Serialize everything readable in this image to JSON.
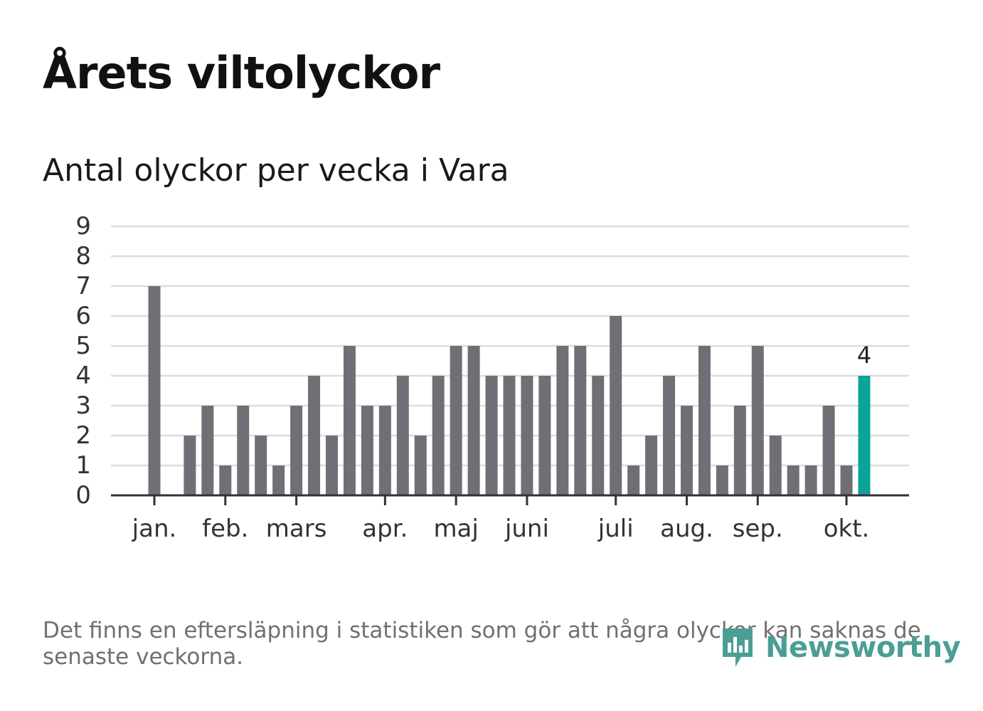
{
  "header": {
    "title": "Årets viltolyckor",
    "subtitle": "Antal olyckor per vecka i Vara"
  },
  "footer": {
    "note": "Det finns en eftersläpning i statistiken som gör att några olyckor kan saknas de senaste veckorna.",
    "brand": "Newsworthy"
  },
  "colors": {
    "bar": "#6f6f75",
    "highlight": "#0aa39a",
    "grid": "#dddddd",
    "axis": "#333333",
    "brand": "#4c9e95"
  },
  "chart_data": {
    "type": "bar",
    "title": "Antal olyckor per vecka i Vara",
    "xlabel": "",
    "ylabel": "",
    "ylim": [
      0,
      9
    ],
    "yticks": [
      0,
      1,
      2,
      3,
      4,
      5,
      6,
      7,
      8,
      9
    ],
    "grid": true,
    "weeks": [
      1,
      2,
      3,
      4,
      5,
      6,
      7,
      8,
      9,
      10,
      11,
      12,
      13,
      14,
      15,
      16,
      17,
      18,
      19,
      20,
      21,
      22,
      23,
      24,
      25,
      26,
      27,
      28,
      29,
      30,
      31,
      32,
      33,
      34,
      35,
      36,
      37,
      38,
      39,
      40,
      41
    ],
    "values": [
      7,
      0,
      2,
      3,
      1,
      3,
      2,
      1,
      3,
      4,
      2,
      5,
      3,
      3,
      4,
      2,
      4,
      5,
      5,
      4,
      4,
      4,
      4,
      5,
      5,
      4,
      6,
      1,
      2,
      4,
      3,
      5,
      1,
      3,
      5,
      2,
      1,
      1,
      3,
      1,
      4
    ],
    "highlight_index": 40,
    "highlight_label": "4",
    "x_ticks": [
      {
        "label": "jan.",
        "week": 1
      },
      {
        "label": "feb.",
        "week": 5
      },
      {
        "label": "mars",
        "week": 9
      },
      {
        "label": "apr.",
        "week": 14
      },
      {
        "label": "maj",
        "week": 18
      },
      {
        "label": "juni",
        "week": 22
      },
      {
        "label": "juli",
        "week": 27
      },
      {
        "label": "aug.",
        "week": 31
      },
      {
        "label": "sep.",
        "week": 35
      },
      {
        "label": "okt.",
        "week": 40
      }
    ]
  }
}
